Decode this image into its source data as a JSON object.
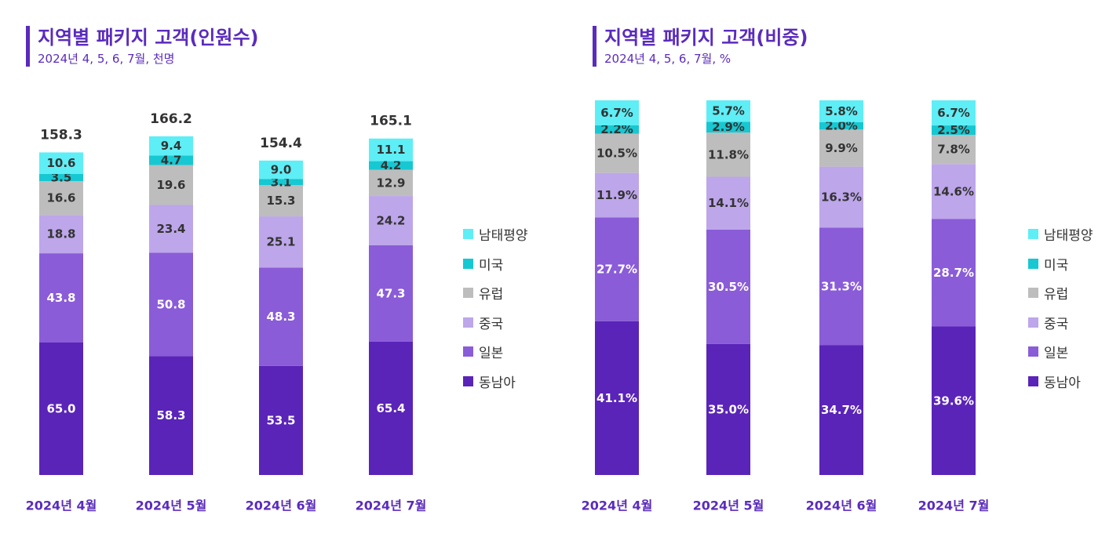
{
  "colors": {
    "동남아": "#5a24b8",
    "일본": "#8a5cd8",
    "중국": "#bda6ea",
    "유럽": "#bdbdbd",
    "미국": "#16c8d2",
    "남태평양": "#5eeef6",
    "accent": "#5a2bbd"
  },
  "charts": [
    {
      "title": "지역별 패키지 고객(인원수)",
      "subtitle": "2024년 4, 5, 6, 7월, 천명"
    },
    {
      "title": "지역별 패키지 고객(비중)",
      "subtitle": "2024년 4, 5, 6, 7월, %"
    }
  ],
  "legend": [
    "남태평양",
    "미국",
    "유럽",
    "중국",
    "일본",
    "동남아"
  ],
  "chart_data": [
    {
      "type": "bar",
      "stacked": true,
      "title": "지역별 패키지 고객(인원수)",
      "subtitle": "2024년 4, 5, 6, 7월, 천명",
      "categories": [
        "2024년 4월",
        "2024년 5월",
        "2024년 6월",
        "2024년 7월"
      ],
      "totals": [
        "158.3",
        "166.2",
        "154.4",
        "165.1"
      ],
      "series": [
        {
          "name": "동남아",
          "values": [
            65.0,
            58.3,
            53.5,
            65.4
          ],
          "labels": [
            "65.0",
            "58.3",
            "53.5",
            "65.4"
          ]
        },
        {
          "name": "일본",
          "values": [
            43.8,
            50.8,
            48.3,
            47.3
          ],
          "labels": [
            "43.8",
            "50.8",
            "48.3",
            "47.3"
          ]
        },
        {
          "name": "중국",
          "values": [
            18.8,
            23.4,
            25.1,
            24.2
          ],
          "labels": [
            "18.8",
            "23.4",
            "25.1",
            "24.2"
          ]
        },
        {
          "name": "유럽",
          "values": [
            16.6,
            19.6,
            15.3,
            12.9
          ],
          "labels": [
            "16.6",
            "19.6",
            "15.3",
            "12.9"
          ]
        },
        {
          "name": "미국",
          "values": [
            3.5,
            4.7,
            3.1,
            4.2
          ],
          "labels": [
            "3.5",
            "4.7",
            "3.1",
            "4.2"
          ]
        },
        {
          "name": "남태평양",
          "values": [
            10.6,
            9.4,
            9.0,
            11.1
          ],
          "labels": [
            "10.6",
            "9.4",
            "9.0",
            "11.1"
          ]
        }
      ],
      "legend_position": "right"
    },
    {
      "type": "bar",
      "stacked": true,
      "normalized": true,
      "title": "지역별 패키지 고객(비중)",
      "subtitle": "2024년 4, 5, 6, 7월, %",
      "categories": [
        "2024년 4월",
        "2024년 5월",
        "2024년 6월",
        "2024년 7월"
      ],
      "series": [
        {
          "name": "동남아",
          "values": [
            41.1,
            35.0,
            34.7,
            39.6
          ],
          "labels": [
            "41.1%",
            "35.0%",
            "34.7%",
            "39.6%"
          ]
        },
        {
          "name": "일본",
          "values": [
            27.7,
            30.5,
            31.3,
            28.7
          ],
          "labels": [
            "27.7%",
            "30.5%",
            "31.3%",
            "28.7%"
          ]
        },
        {
          "name": "중국",
          "values": [
            11.9,
            14.1,
            16.3,
            14.6
          ],
          "labels": [
            "11.9%",
            "14.1%",
            "16.3%",
            "14.6%"
          ]
        },
        {
          "name": "유럽",
          "values": [
            10.5,
            11.8,
            9.9,
            7.8
          ],
          "labels": [
            "10.5%",
            "11.8%",
            "9.9%",
            "7.8%"
          ]
        },
        {
          "name": "미국",
          "values": [
            2.2,
            2.9,
            2.0,
            2.5
          ],
          "labels": [
            "2.2%",
            "2.9%",
            "2.0%",
            "2.5%"
          ]
        },
        {
          "name": "남태평양",
          "values": [
            6.7,
            5.7,
            5.8,
            6.7
          ],
          "labels": [
            "6.7%",
            "5.7%",
            "5.8%",
            "6.7%"
          ]
        }
      ],
      "legend_position": "right"
    }
  ]
}
